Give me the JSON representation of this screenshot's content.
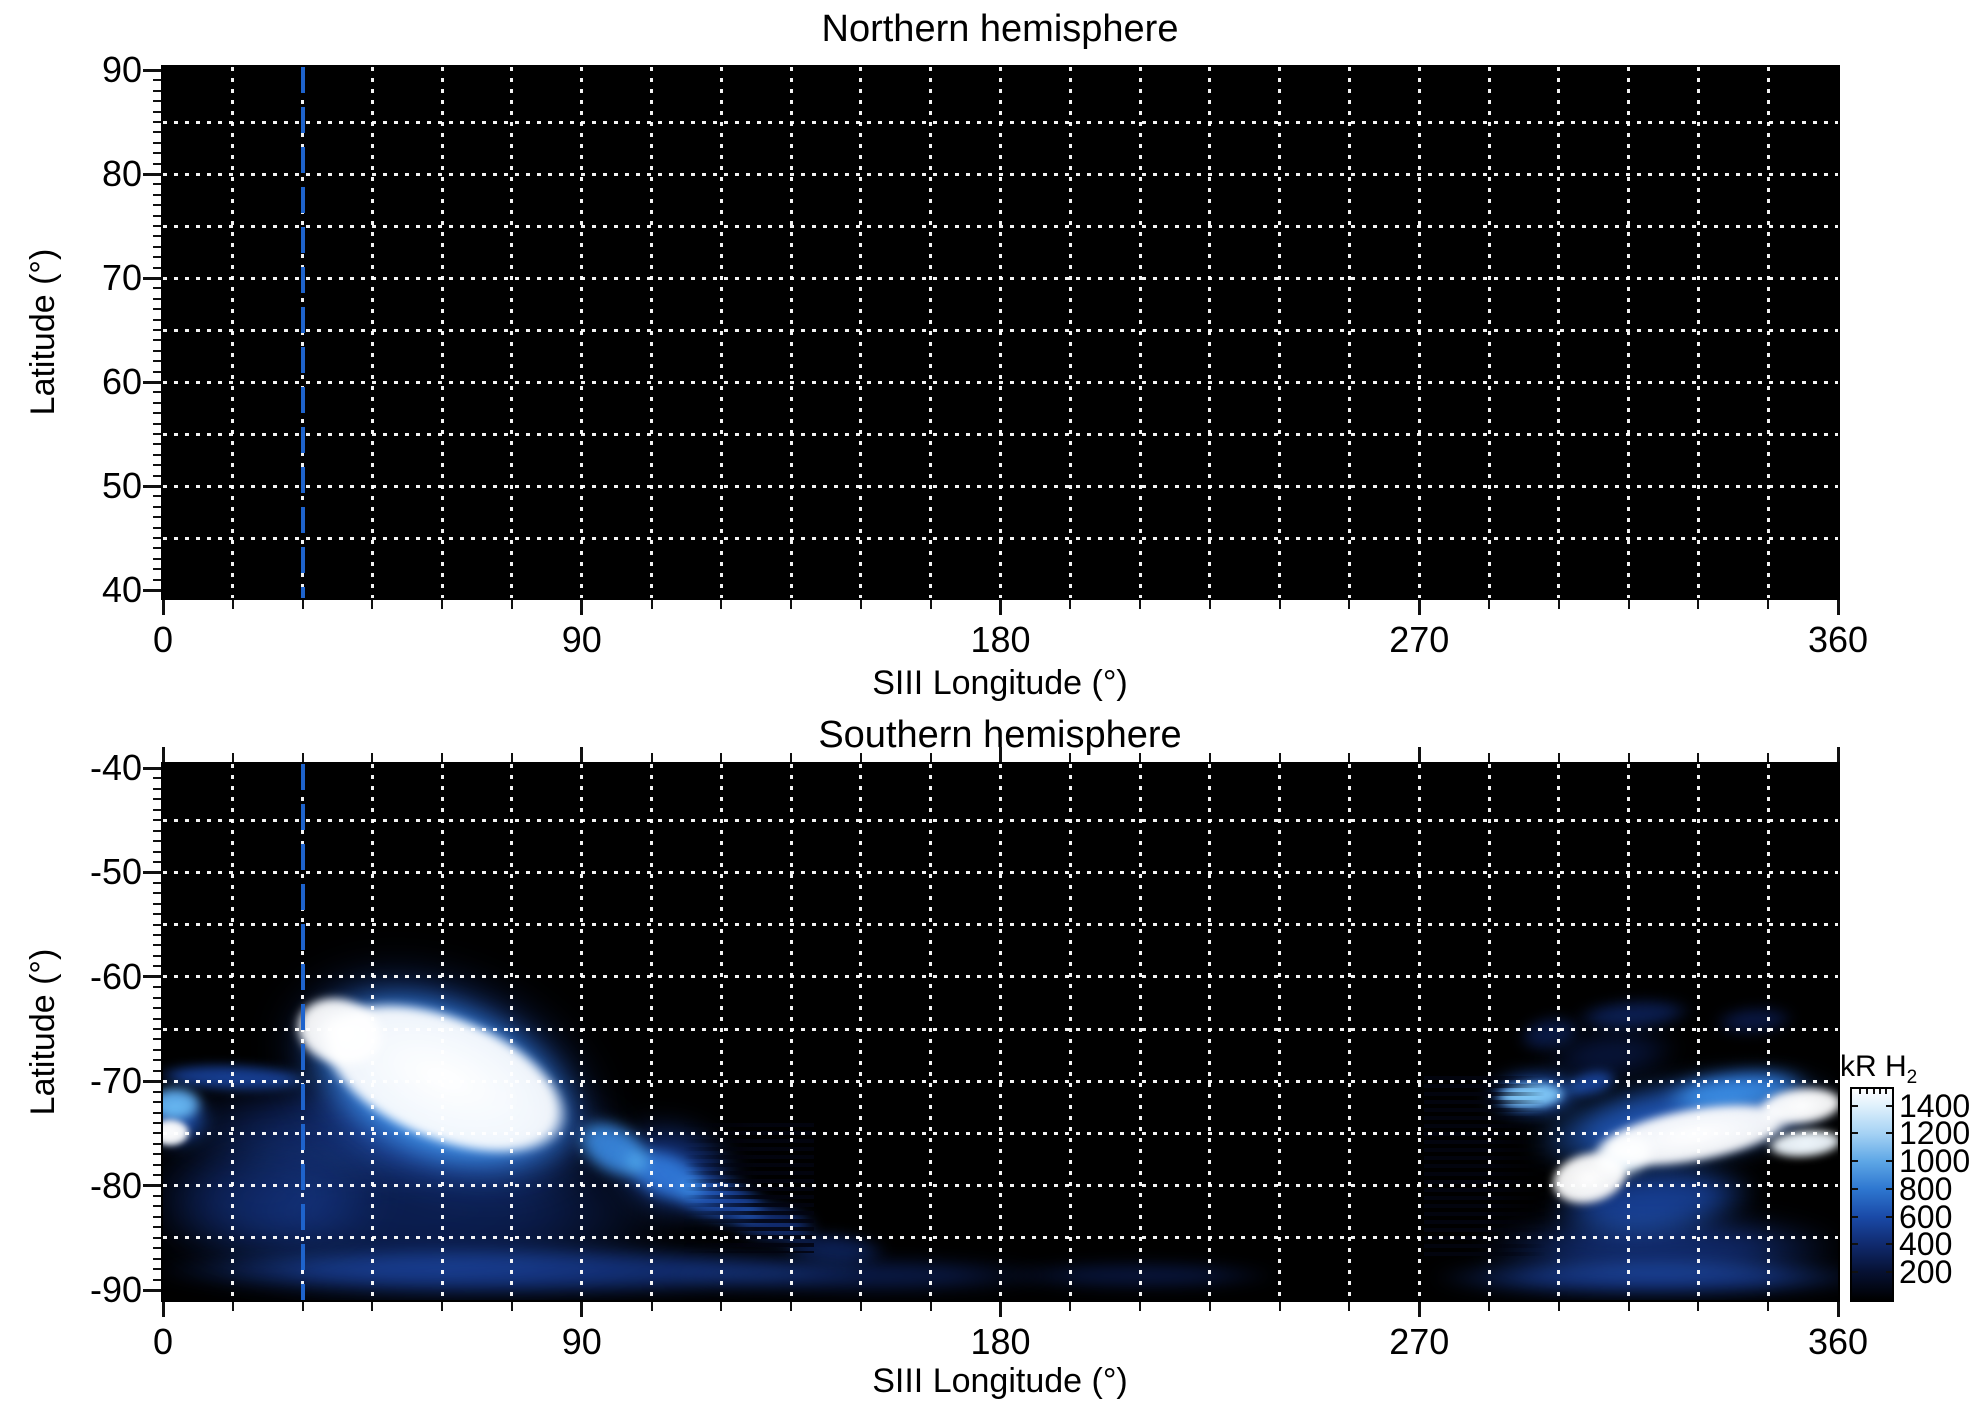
{
  "chart_data": {
    "type": "heatmap",
    "description": "Auroral H2 emission brightness maps vs SIII longitude and latitude, northern and southern hemispheres",
    "reference_line": {
      "lon": 30,
      "style": "dashed",
      "color": "#1e63cc"
    },
    "grid": {
      "x_step_deg": 15,
      "y_step_deg": 5,
      "style": "white dotted"
    },
    "colormap_stops": [
      {
        "value": 0,
        "rgb": [
          0,
          0,
          0
        ]
      },
      {
        "value": 200,
        "rgb": [
          6,
          17,
          51
        ]
      },
      {
        "value": 400,
        "rgb": [
          16,
          42,
          110
        ]
      },
      {
        "value": 600,
        "rgb": [
          26,
          74,
          168
        ]
      },
      {
        "value": 800,
        "rgb": [
          46,
          119,
          208
        ]
      },
      {
        "value": 1000,
        "rgb": [
          94,
          167,
          230
        ]
      },
      {
        "value": 1200,
        "rgb": [
          165,
          210,
          244
        ]
      },
      {
        "value": 1400,
        "rgb": [
          224,
          241,
          252
        ]
      },
      {
        "value": 1520,
        "rgb": [
          255,
          255,
          255
        ]
      }
    ],
    "colorbar": {
      "label": "kR H",
      "label_sub": "2",
      "ticks": [
        1400,
        1200,
        1000,
        800,
        600,
        400,
        200
      ],
      "range": [
        0,
        1520
      ]
    },
    "panels": [
      {
        "id": "north",
        "title": "Northern hemisphere",
        "xlabel": "SIII Longitude (°)",
        "ylabel": "Latitude (°)",
        "xlim": [
          0,
          360
        ],
        "ylim_top": 90,
        "ylim_bottom": 40,
        "xticks": [
          0,
          90,
          180,
          270,
          360
        ],
        "yticks": [
          90,
          80,
          70,
          60,
          50,
          40
        ],
        "features": [],
        "combs": []
      },
      {
        "id": "south",
        "title": "Southern hemisphere",
        "xlabel": "SIII Longitude (°)",
        "ylabel": "Latitude (°)",
        "xlim": [
          0,
          360
        ],
        "ylim_top": -40,
        "ylim_bottom": -90,
        "xticks": [
          0,
          90,
          180,
          270,
          360
        ],
        "yticks": [
          -40,
          -50,
          -60,
          -70,
          -80,
          -90
        ],
        "features": [
          {
            "lon": 55,
            "lat": -82.5,
            "rlon": 58,
            "rlat": 8.5,
            "rot": 0,
            "kr": 300,
            "soft": 0.55,
            "blur": 18
          },
          {
            "lon": 50,
            "lat": -74.5,
            "rlon": 52,
            "rlat": 5.0,
            "rot": 0,
            "kr": 330,
            "soft": 0.5,
            "blur": 14
          },
          {
            "lon": 22,
            "lat": -81.0,
            "rlon": 26,
            "rlat": 6.5,
            "rot": 0,
            "kr": 260,
            "soft": 0.55,
            "blur": 16
          },
          {
            "lon": 75,
            "lat": -88.2,
            "rlon": 78,
            "rlat": 2.4,
            "rot": 0,
            "kr": 430,
            "soft": 0.45,
            "blur": 8
          },
          {
            "lon": 150,
            "lat": -88.6,
            "rlon": 42,
            "rlat": 1.7,
            "rot": 0,
            "kr": 270,
            "soft": 0.5,
            "blur": 8
          },
          {
            "lon": 210,
            "lat": -88.6,
            "rlon": 30,
            "rlat": 1.4,
            "rot": 0,
            "kr": 230,
            "soft": 0.5,
            "blur": 7
          },
          {
            "lon": 322,
            "lat": -86.0,
            "rlon": 40,
            "rlat": 3.4,
            "rot": 0,
            "kr": 390,
            "soft": 0.5,
            "blur": 12
          },
          {
            "lon": 320,
            "lat": -88.8,
            "rlon": 48,
            "rlat": 1.9,
            "rot": 0,
            "kr": 430,
            "soft": 0.45,
            "blur": 8
          },
          {
            "lon": 60,
            "lat": -70.0,
            "rlon": 38,
            "rlat": 11.0,
            "rot": 22,
            "kr": 430,
            "soft": 0.5,
            "blur": 16
          },
          {
            "lon": 60,
            "lat": -70.0,
            "rlon": 33,
            "rlat": 8.5,
            "rot": 22,
            "kr": 750,
            "soft": 0.35,
            "blur": 10
          },
          {
            "lon": 60.5,
            "lat": -69.8,
            "rlon": 28.5,
            "rlat": 6.2,
            "rot": 22,
            "kr": 1600,
            "soft": 0.13,
            "blur": 4
          },
          {
            "lon": 38,
            "lat": -65.2,
            "rlon": 10,
            "rlat": 3.4,
            "rot": 16,
            "kr": 1580,
            "soft": 0.2,
            "blur": 4
          },
          {
            "lon": 15,
            "lat": -69.7,
            "rlon": 17,
            "rlat": 1.3,
            "rot": 2,
            "kr": 520,
            "soft": 0.3,
            "blur": 5
          },
          {
            "lon": 2.5,
            "lat": -72.2,
            "rlon": 6,
            "rlat": 1.7,
            "rot": 0,
            "kr": 980,
            "soft": 0.3,
            "blur": 5
          },
          {
            "lon": 2.5,
            "lat": -73.6,
            "rlon": 8,
            "rlat": 2.8,
            "rot": 0,
            "kr": 560,
            "soft": 0.45,
            "blur": 8
          },
          {
            "lon": 1.5,
            "lat": -74.9,
            "rlon": 4.5,
            "rlat": 1.4,
            "rot": 0,
            "kr": 1520,
            "soft": 0.25,
            "blur": 3
          },
          {
            "lon": 97,
            "lat": -76.5,
            "rlon": 9,
            "rlat": 2.6,
            "rot": 30,
            "kr": 820,
            "soft": 0.35,
            "blur": 6
          },
          {
            "lon": 108,
            "lat": -79.0,
            "rlon": 10,
            "rlat": 2.4,
            "rot": 22,
            "kr": 660,
            "soft": 0.35,
            "blur": 6
          },
          {
            "lon": 120,
            "lat": -81.5,
            "rlon": 11,
            "rlat": 2.2,
            "rot": 14,
            "kr": 520,
            "soft": 0.35,
            "blur": 6
          },
          {
            "lon": 131,
            "lat": -83.6,
            "rlon": 10,
            "rlat": 1.9,
            "rot": 8,
            "kr": 410,
            "soft": 0.4,
            "blur": 6
          },
          {
            "lon": 144,
            "lat": -86.0,
            "rlon": 12,
            "rlat": 1.6,
            "rot": 4,
            "kr": 300,
            "soft": 0.45,
            "blur": 6
          },
          {
            "lon": 110,
            "lat": -78.5,
            "rlon": 15,
            "rlat": 4.8,
            "rot": 20,
            "kr": 430,
            "soft": 0.5,
            "blur": 12
          },
          {
            "lon": 316,
            "lat": -63.6,
            "rlon": 13,
            "rlat": 1.5,
            "rot": -4,
            "kr": 300,
            "soft": 0.4,
            "blur": 6
          },
          {
            "lon": 298,
            "lat": -65.5,
            "rlon": 7,
            "rlat": 1.7,
            "rot": -12,
            "kr": 260,
            "soft": 0.4,
            "blur": 6
          },
          {
            "lon": 311,
            "lat": -67.5,
            "rlon": 15,
            "rlat": 2.6,
            "rot": -6,
            "kr": 220,
            "soft": 0.5,
            "blur": 10
          },
          {
            "lon": 342,
            "lat": -64.2,
            "rlon": 9,
            "rlat": 1.4,
            "rot": -4,
            "kr": 250,
            "soft": 0.45,
            "blur": 6
          },
          {
            "lon": 294,
            "lat": -71.4,
            "rlon": 8,
            "rlat": 1.4,
            "rot": -3,
            "kr": 1060,
            "soft": 0.3,
            "blur": 4
          },
          {
            "lon": 295,
            "lat": -71.2,
            "rlon": 11,
            "rlat": 2.4,
            "rot": -3,
            "kr": 600,
            "soft": 0.45,
            "blur": 8
          },
          {
            "lon": 307,
            "lat": -70.2,
            "rlon": 6,
            "rlat": 1.3,
            "rot": -14,
            "kr": 520,
            "soft": 0.4,
            "blur": 5
          },
          {
            "lon": 327,
            "lat": -73.8,
            "rlon": 34,
            "rlat": 4.4,
            "rot": -9,
            "kr": 640,
            "soft": 0.42,
            "blur": 10
          },
          {
            "lon": 338,
            "lat": -70.8,
            "rlon": 16,
            "rlat": 2.0,
            "rot": -7,
            "kr": 700,
            "soft": 0.4,
            "blur": 7
          },
          {
            "lon": 329,
            "lat": -75.2,
            "rlon": 22,
            "rlat": 2.7,
            "rot": -10,
            "kr": 1600,
            "soft": 0.18,
            "blur": 4
          },
          {
            "lon": 306.5,
            "lat": -79.3,
            "rlon": 8.5,
            "rlat": 2.5,
            "rot": -14,
            "kr": 1620,
            "soft": 0.15,
            "blur": 4
          },
          {
            "lon": 314,
            "lat": -77.2,
            "rlon": 7,
            "rlat": 2.0,
            "rot": -20,
            "kr": 1420,
            "soft": 0.25,
            "blur": 5
          },
          {
            "lon": 352,
            "lat": -72.4,
            "rlon": 9.5,
            "rlat": 1.8,
            "rot": -6,
            "kr": 1600,
            "soft": 0.2,
            "blur": 4
          },
          {
            "lon": 353,
            "lat": -76.0,
            "rlon": 8.5,
            "rlat": 1.4,
            "rot": -5,
            "kr": 1460,
            "soft": 0.25,
            "blur": 4
          },
          {
            "lon": 320,
            "lat": -81.5,
            "rlon": 23,
            "rlat": 3.6,
            "rot": -6,
            "kr": 520,
            "soft": 0.45,
            "blur": 10
          }
        ],
        "combs": [
          {
            "lon0": 112,
            "lon1": 140,
            "lat0": -74,
            "lat1": -86.5,
            "strong_side": "right",
            "stripe": "rgba(2,4,16,0.85)",
            "period": 8,
            "tooth": 4
          },
          {
            "lon0": 271,
            "lon1": 297,
            "lat0": -69.5,
            "lat1": -87,
            "strong_side": "left",
            "stripe": "rgba(2,4,16,0.9)",
            "period": 8,
            "tooth": 4
          }
        ]
      }
    ]
  }
}
